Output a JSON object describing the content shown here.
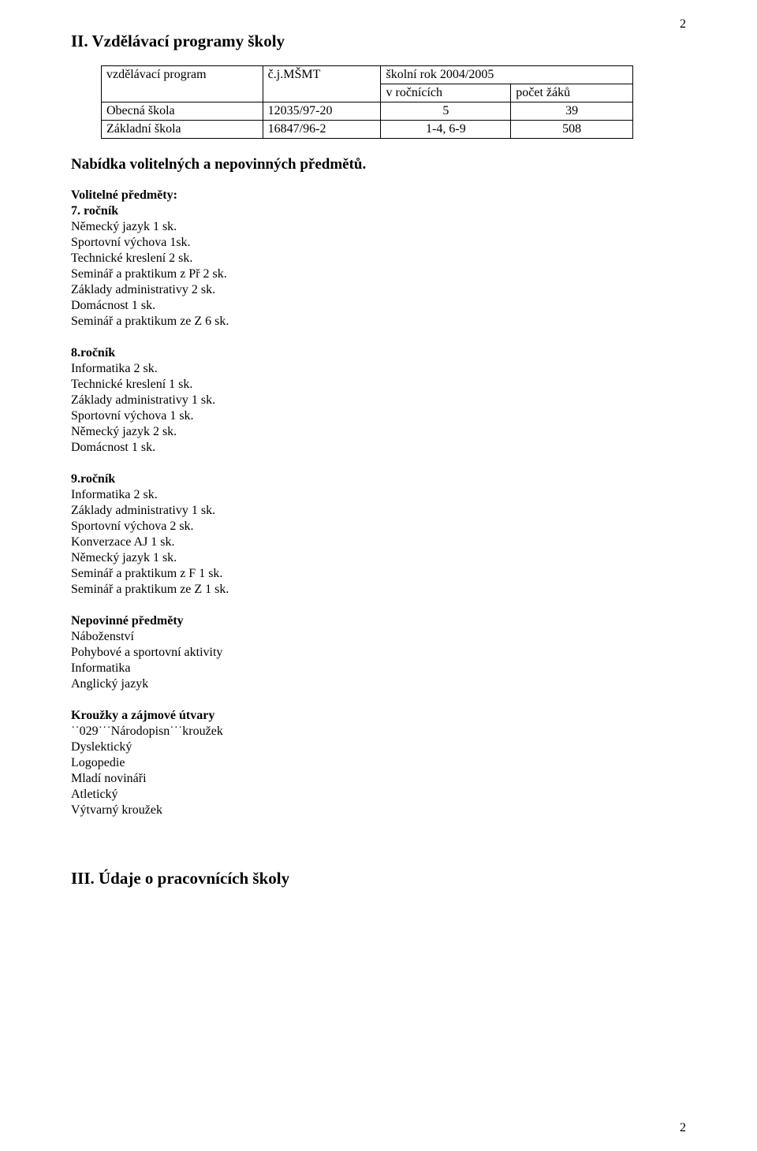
{
  "page_number_top": "2",
  "page_number_bottom": "2",
  "section_title": "II. Vzdělávací programy školy",
  "table": {
    "header_row1": [
      "vzdělávací program",
      "č.j.MŠMT",
      "školní rok 2004/2005"
    ],
    "header_row2_col3": "v ročnících",
    "header_row2_col4": "počet žáků",
    "rows": [
      [
        "Obecná škola",
        "12035/97-20",
        "5",
        "39"
      ],
      [
        "Základní škola",
        "16847/96-2",
        "1-4, 6-9",
        "508"
      ]
    ]
  },
  "nabidka_title": "Nabídka volitelných a nepovinných předmětů.",
  "volitelne_heading": "Volitelné předměty:",
  "grade7": {
    "heading": "7. ročník",
    "items": [
      "Německý jazyk 1 sk.",
      "Sportovní výchova 1sk.",
      "Technické kreslení 2 sk.",
      "Seminář a praktikum z Př 2 sk.",
      "Základy administrativy 2 sk.",
      "Domácnost 1 sk.",
      "Seminář a praktikum ze Z 6 sk."
    ]
  },
  "grade8": {
    "heading": "8.ročník",
    "items": [
      "Informatika 2 sk.",
      "Technické kreslení 1 sk.",
      "Základy administrativy 1 sk.",
      "Sportovní výchova 1 sk.",
      "Německý jazyk 2 sk.",
      "Domácnost 1 sk."
    ]
  },
  "grade9": {
    "heading": "9.ročník",
    "items": [
      "Informatika 2 sk.",
      "Základy administrativy 1 sk.",
      "Sportovní výchova 2 sk.",
      "Konverzace AJ 1 sk.",
      "Německý jazyk 1 sk.",
      "Seminář a praktikum z F 1 sk.",
      "Seminář a praktikum ze Z 1 sk."
    ]
  },
  "nepovinne": {
    "heading": "Nepovinné předměty",
    "items": [
      "Náboženství",
      "Pohybové a sportovní aktivity",
      "Informatika",
      "Anglický jazyk"
    ]
  },
  "krouzky": {
    "heading": "Kroužky a zájmové útvary",
    "items": [
      "˙˙029˙˙˙Národopisn˙˙˙kroužek",
      "Dyslektický",
      "Logopedie",
      "Mladí novináři",
      "Atletický",
      "Výtvarný kroužek"
    ]
  },
  "section3_title": "III. Údaje o pracovnících školy"
}
